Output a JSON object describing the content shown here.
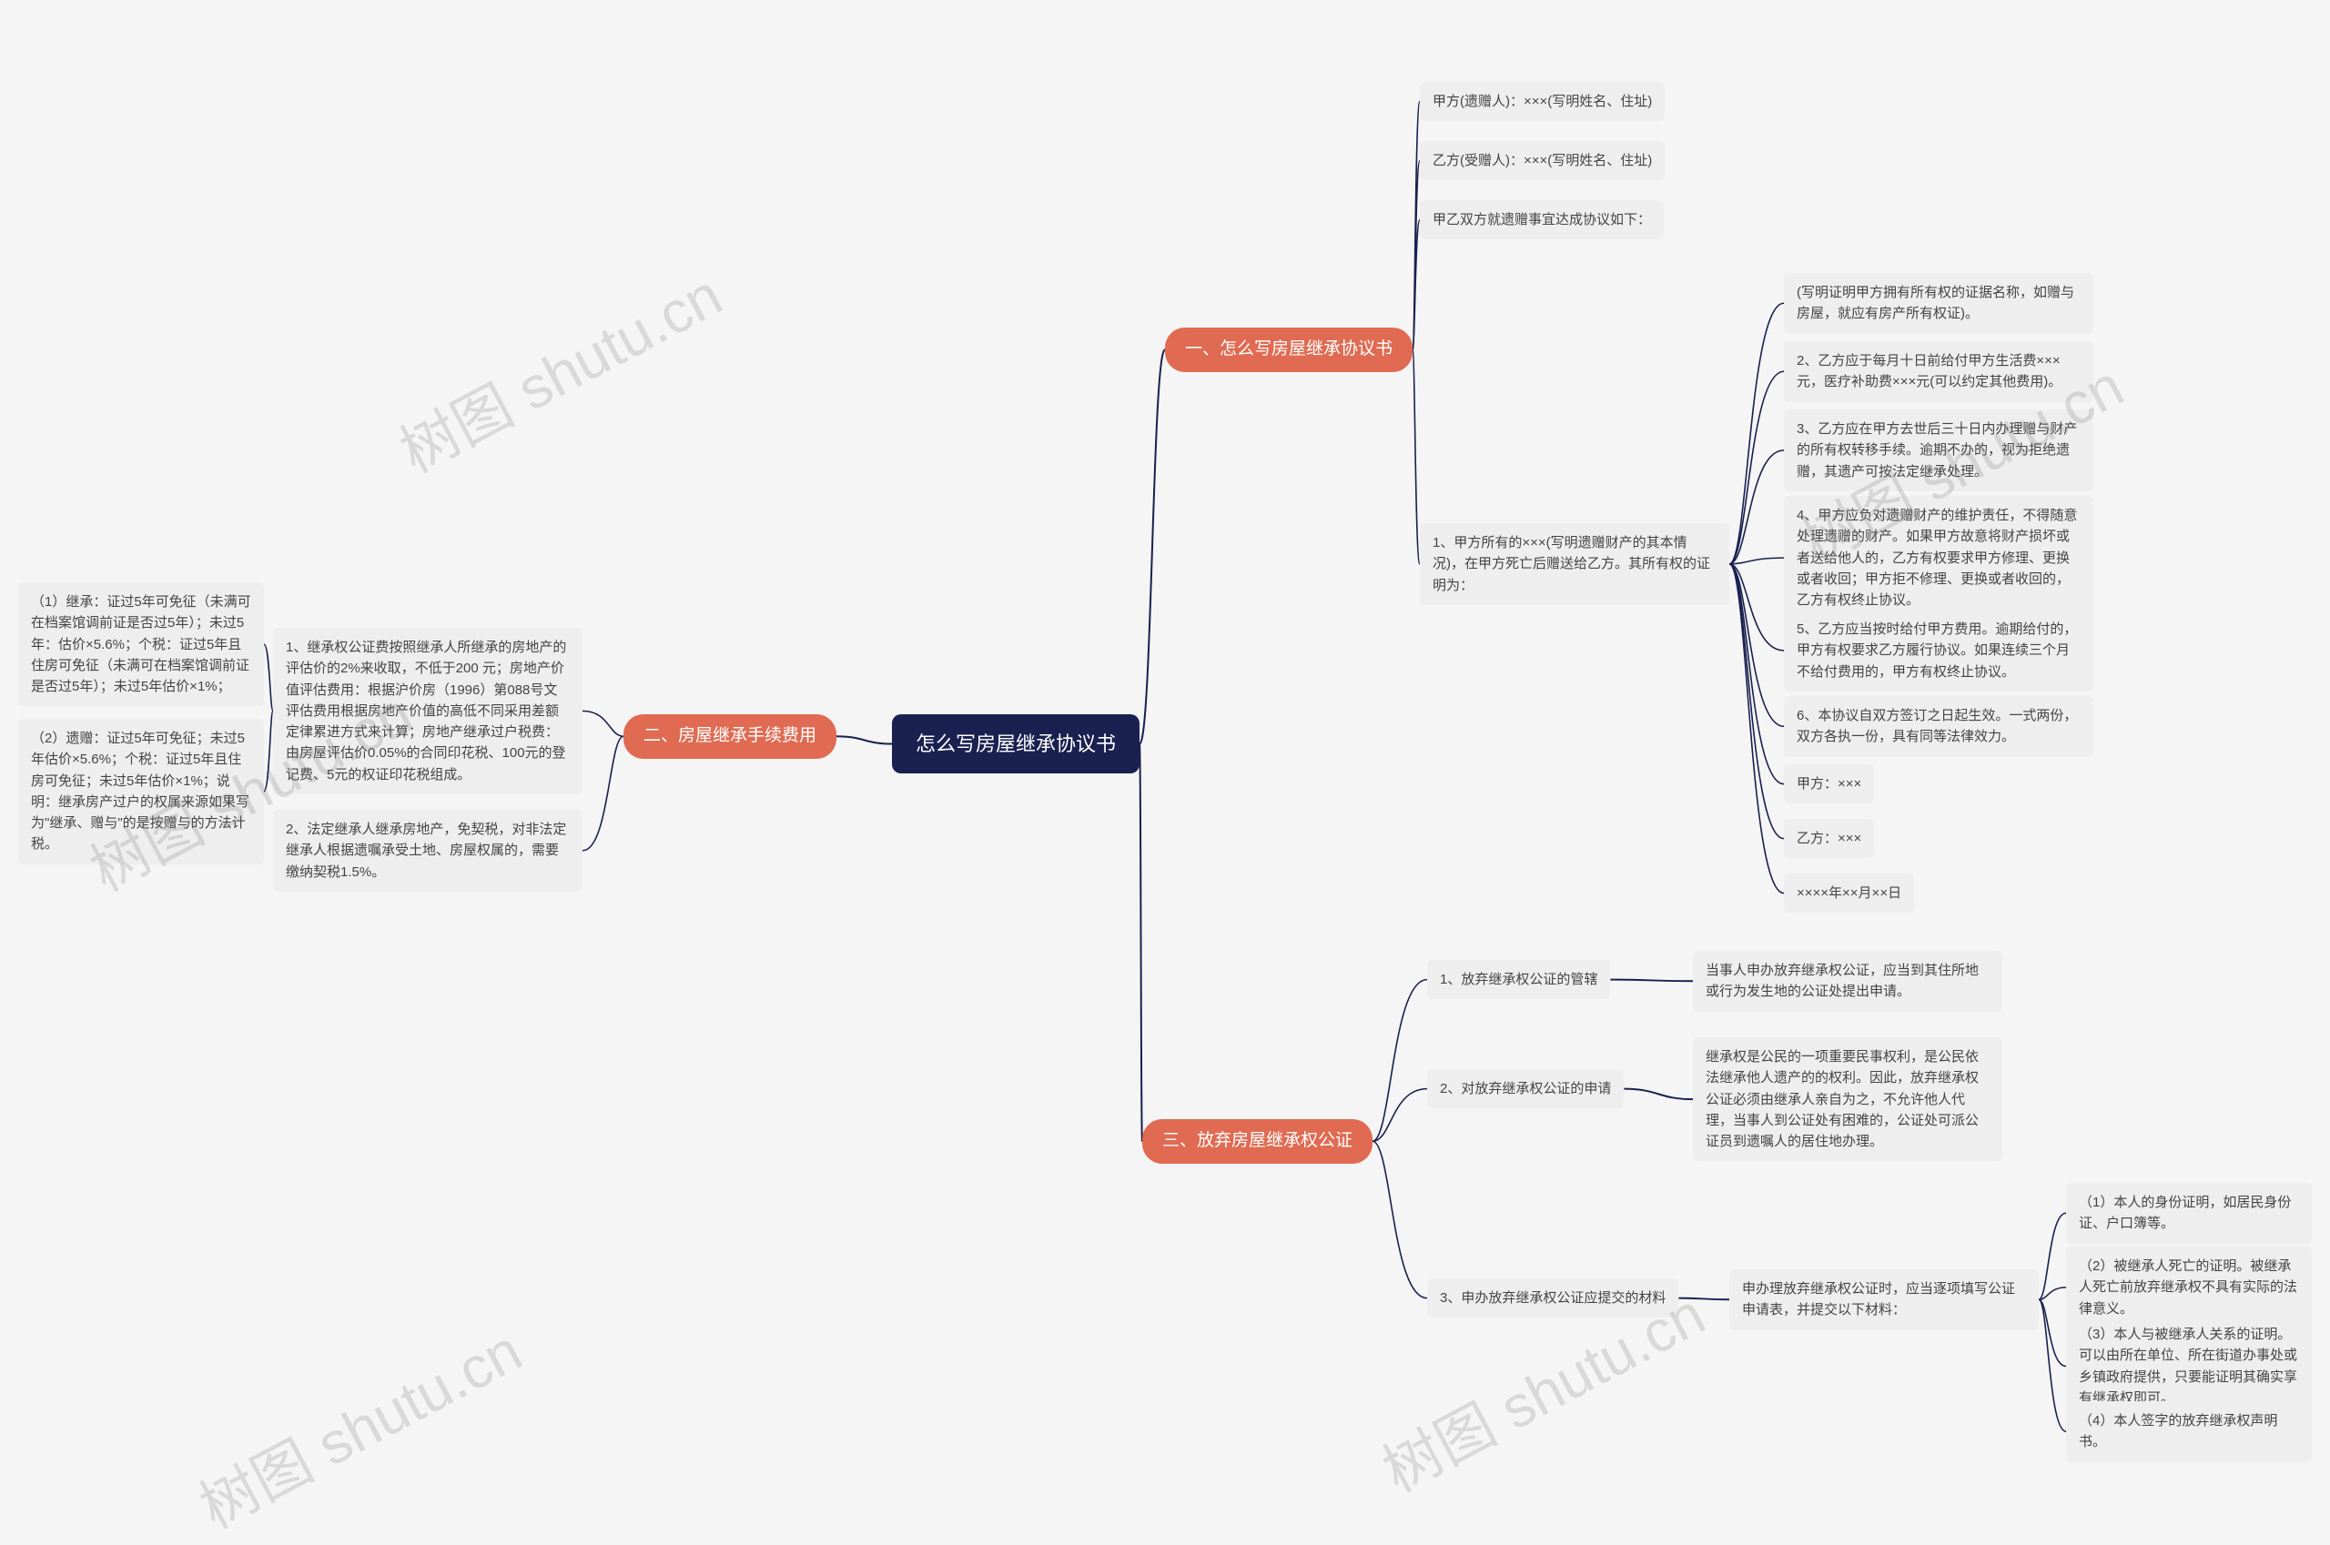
{
  "colors": {
    "background": "#f5f5f5",
    "root_bg": "#1a2050",
    "root_fg": "#ffffff",
    "branch_bg": "#e06b52",
    "branch_fg": "#ffffff",
    "leaf_bg": "#eeeeee",
    "leaf_fg": "#444444",
    "edge": "#1a2050",
    "watermark": "rgba(120,120,120,0.22)"
  },
  "watermark_text": "树图 shutu.cn",
  "root": "怎么写房屋继承协议书",
  "section1": {
    "title": "一、怎么写房屋继承协议书",
    "items": {
      "a": "甲方(遗赠人)：×××(写明姓名、住址)",
      "b": "乙方(受赠人)：×××(写明姓名、住址)",
      "c": "甲乙双方就遗赠事宜达成协议如下：",
      "d": {
        "label": "1、甲方所有的×××(写明遗赠财产的其本情况)，在甲方死亡后赠送给乙方。其所有权的证明为：",
        "children": {
          "d1": "(写明证明甲方拥有所有权的证据名称，如赠与房屋，就应有房产所有权证)。",
          "d2": "2、乙方应于每月十日前给付甲方生活费×××元，医疗补助费×××元(可以约定其他费用)。",
          "d3": "3、乙方应在甲方去世后三十日内办理赠与财产的所有权转移手续。逾期不办的，视为拒绝遗赠，其遗产可按法定继承处理。",
          "d4": "4、甲方应负对遗赠财产的维护责任，不得随意处理遗赠的财产。如果甲方故意将财产损坏或者送给他人的，乙方有权要求甲方修理、更换或者收回；甲方拒不修理、更换或者收回的，乙方有权终止协议。",
          "d5": "5、乙方应当按时给付甲方费用。逾期给付的，甲方有权要求乙方履行协议。如果连续三个月不给付费用的，甲方有权终止协议。",
          "d6": "6、本协议自双方签订之日起生效。一式两份，双方各执一份，具有同等法律效力。",
          "d7": "甲方：×××",
          "d8": "乙方：×××",
          "d9": "××××年××月××日"
        }
      }
    }
  },
  "section2": {
    "title": "二、房屋继承手续费用",
    "items": {
      "a": {
        "label": "1、继承权公证费按照继承人所继承的房地产的评估价的2%来收取，不低于200 元；房地产价值评估费用：根据沪价房（1996）第088号文评估费用根据房地产价值的高低不同采用差额定律累进方式来计算；房地产继承过户税费：由房屋评估价0.05%的合同印花税、100元的登记费、5元的权证印花税组成。",
        "children": {
          "a1": "（1）继承：证过5年可免征（未满可在档案馆调前证是否过5年）；未过5年：估价×5.6%；个税：证过5年且住房可免征（未满可在档案馆调前证是否过5年）；未过5年估价×1%；",
          "a2": "（2）遗赠：证过5年可免征；未过5年估价×5.6%；个税：证过5年且住房可免征；未过5年估价×1%；说明：继承房产过户的权属来源如果写为\"继承、赠与\"的是按赠与的方法计税。"
        }
      },
      "b": "2、法定继承人继承房地产，免契税，对非法定继承人根据遗嘱承受土地、房屋权属的，需要缴纳契税1.5%。"
    }
  },
  "section3": {
    "title": "三、放弃房屋继承权公证",
    "items": {
      "a": {
        "label": "1、放弃继承权公证的管辖",
        "text": "当事人申办放弃继承权公证，应当到其住所地或行为发生地的公证处提出申请。"
      },
      "b": {
        "label": "2、对放弃继承权公证的申请",
        "text": "继承权是公民的一项重要民事权利，是公民依法继承他人遗产的的权利。因此，放弃继承权公证必须由继承人亲自为之，不允许他人代理，当事人到公证处有困难的，公证处可派公证员到遗嘱人的居住地办理。"
      },
      "c": {
        "label": "3、申办放弃继承权公证应提交的材料",
        "text": "申办理放弃继承权公证时，应当逐项填写公证申请表，并提交以下材料：",
        "children": {
          "c1": "（1）本人的身份证明，如居民身份证、户口簿等。",
          "c2": "（2）被继承人死亡的证明。被继承人死亡前放弃继承权不具有实际的法律意义。",
          "c3": "（3）本人与被继承人关系的证明。可以由所在单位、所在街道办事处或乡镇政府提供，只要能证明其确实享有继承权即可。",
          "c4": "（4）本人签字的放弃继承权声明书。"
        }
      }
    }
  }
}
